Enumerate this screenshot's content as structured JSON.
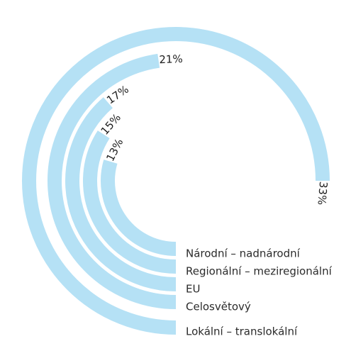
{
  "chart_data": {
    "type": "radial-bar",
    "title": "",
    "colors": {
      "bar": "#b5e1f5",
      "label": "#2b2b2b",
      "value": "#1e1e1e"
    },
    "max_value": 33,
    "categories": [
      "Národní – nadnárodní",
      "Regionální – meziregionální",
      "EU",
      "Celosvětový",
      "Lokální – translokální"
    ],
    "values": [
      13,
      15,
      17,
      21,
      33
    ],
    "value_labels": [
      "13%",
      "15%",
      "17%",
      "21%",
      "33%"
    ]
  }
}
